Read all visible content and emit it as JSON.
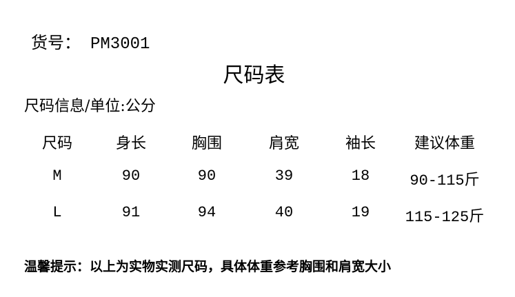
{
  "item": {
    "label": "货号：",
    "code": "PM3001"
  },
  "title": "尺码表",
  "info": "尺码信息/单位:公分",
  "table": {
    "headers": [
      "尺码",
      "身长",
      "胸围",
      "肩宽",
      "袖长",
      "建议体重"
    ],
    "rows": [
      [
        "M",
        "90",
        "90",
        "39",
        "18",
        "90-115斤"
      ],
      [
        "L",
        "91",
        "94",
        "40",
        "19",
        "115-125斤"
      ]
    ]
  },
  "note": "温馨提示：以上为实物实测尺码，具体体重参考胸围和肩宽大小"
}
